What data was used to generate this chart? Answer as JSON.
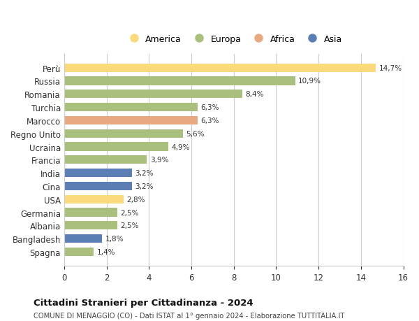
{
  "countries": [
    "Perù",
    "Russia",
    "Romania",
    "Turchia",
    "Marocco",
    "Regno Unito",
    "Ucraina",
    "Francia",
    "India",
    "Cina",
    "USA",
    "Germania",
    "Albania",
    "Bangladesh",
    "Spagna"
  ],
  "values": [
    14.7,
    10.9,
    8.4,
    6.3,
    6.3,
    5.6,
    4.9,
    3.9,
    3.2,
    3.2,
    2.8,
    2.5,
    2.5,
    1.8,
    1.4
  ],
  "labels": [
    "14,7%",
    "10,9%",
    "8,4%",
    "6,3%",
    "6,3%",
    "5,6%",
    "4,9%",
    "3,9%",
    "3,2%",
    "3,2%",
    "2,8%",
    "2,5%",
    "2,5%",
    "1,8%",
    "1,4%"
  ],
  "continents": [
    "America",
    "Europa",
    "Europa",
    "Europa",
    "Africa",
    "Europa",
    "Europa",
    "Europa",
    "Asia",
    "Asia",
    "America",
    "Europa",
    "Europa",
    "Asia",
    "Europa"
  ],
  "colors": {
    "America": "#FADA7A",
    "Europa": "#AABF7E",
    "Africa": "#E8A882",
    "Asia": "#5B7FB5"
  },
  "legend_order": [
    "America",
    "Europa",
    "Africa",
    "Asia"
  ],
  "xlim": [
    0,
    16
  ],
  "xticks": [
    0,
    2,
    4,
    6,
    8,
    10,
    12,
    14,
    16
  ],
  "title": "Cittadini Stranieri per Cittadinanza - 2024",
  "subtitle": "COMUNE DI MENAGGIO (CO) - Dati ISTAT al 1° gennaio 2024 - Elaborazione TUTTITALIA.IT",
  "background_color": "#ffffff",
  "grid_color": "#cccccc",
  "bar_height": 0.65
}
